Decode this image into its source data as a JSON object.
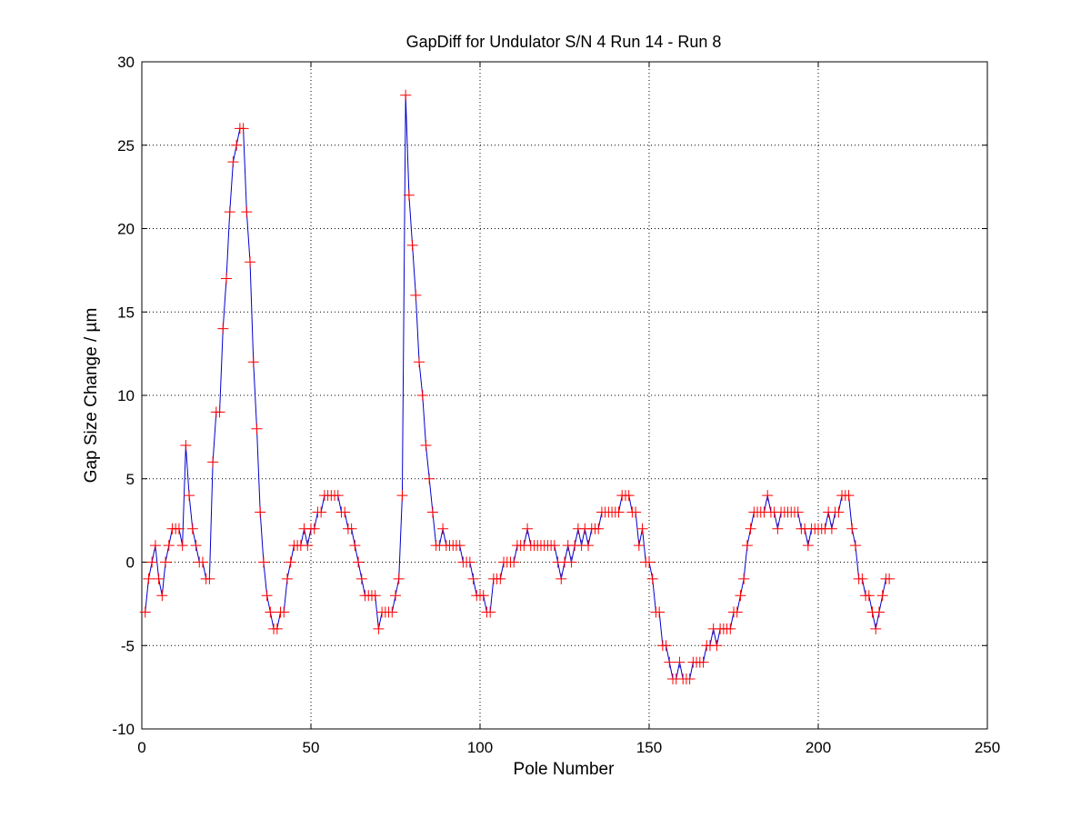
{
  "chart_data": {
    "type": "line",
    "title": "GapDiff  for Undulator S/N 4 Run 14 - Run 8",
    "xlabel": "Pole Number",
    "ylabel": "Gap Size Change / µm",
    "xlim": [
      0,
      250
    ],
    "ylim": [
      -10,
      30
    ],
    "xticks": [
      0,
      50,
      100,
      150,
      200,
      250
    ],
    "yticks": [
      -10,
      -5,
      0,
      5,
      10,
      15,
      20,
      25,
      30
    ],
    "grid": true,
    "line_color": "#0000cc",
    "marker_color": "#ff0000",
    "marker": "+",
    "x_start": 1,
    "x_step": 1,
    "values": [
      -3,
      -1,
      0,
      1,
      -1,
      -2,
      0,
      1,
      2,
      2,
      2,
      1,
      7,
      4,
      2,
      1,
      0,
      0,
      -1,
      -1,
      6,
      9,
      9,
      14,
      17,
      21,
      24,
      25,
      26,
      26,
      21,
      18,
      12,
      8,
      3,
      0,
      -2,
      -3,
      -4,
      -4,
      -3,
      -3,
      -1,
      0,
      1,
      1,
      1,
      2,
      1,
      2,
      2,
      3,
      3,
      4,
      4,
      4,
      4,
      4,
      3,
      3,
      2,
      2,
      1,
      0,
      -1,
      -2,
      -2,
      -2,
      -2,
      -4,
      -3,
      -3,
      -3,
      -3,
      -2,
      -1,
      4,
      28,
      22,
      19,
      16,
      12,
      10,
      7,
      5,
      3,
      1,
      1,
      2,
      1,
      1,
      1,
      1,
      1,
      0,
      0,
      0,
      -1,
      -2,
      -2,
      -2,
      -3,
      -3,
      -1,
      -1,
      -1,
      0,
      0,
      0,
      0,
      1,
      1,
      1,
      2,
      1,
      1,
      1,
      1,
      1,
      1,
      1,
      1,
      0,
      -1,
      0,
      1,
      0,
      1,
      2,
      1,
      2,
      1,
      2,
      2,
      2,
      3,
      3,
      3,
      3,
      3,
      3,
      4,
      4,
      4,
      3,
      3,
      1,
      2,
      0,
      0,
      -1,
      -3,
      -3,
      -5,
      -5,
      -6,
      -7,
      -7,
      -6,
      -7,
      -7,
      -7,
      -6,
      -6,
      -6,
      -6,
      -5,
      -5,
      -4,
      -5,
      -4,
      -4,
      -4,
      -4,
      -3,
      -3,
      -2,
      -1,
      1,
      2,
      3,
      3,
      3,
      3,
      4,
      3,
      3,
      2,
      3,
      3,
      3,
      3,
      3,
      3,
      2,
      2,
      1,
      2,
      2,
      2,
      2,
      2,
      3,
      2,
      3,
      3,
      4,
      4,
      4,
      2,
      1,
      -1,
      -1,
      -2,
      -2,
      -3,
      -4,
      -3,
      -2,
      -1,
      -1
    ]
  }
}
